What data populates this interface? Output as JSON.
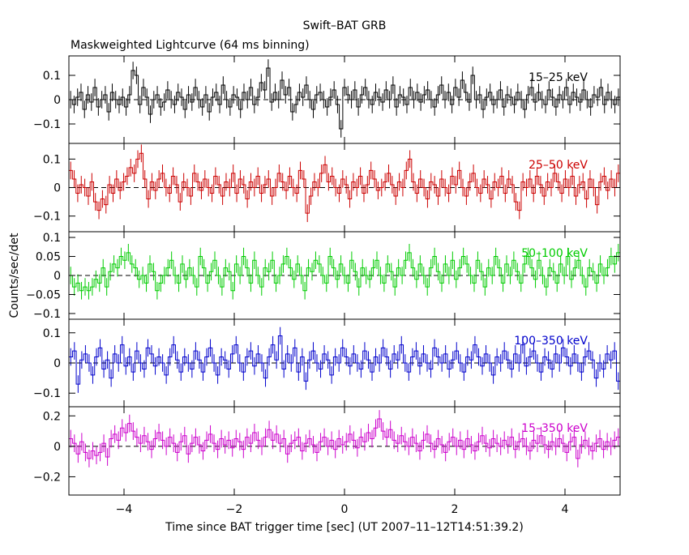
{
  "chart_data": {
    "type": "line",
    "title": "Swift–BAT GRB",
    "subtitle": "Maskweighted Lightcurve (64 ms binning)",
    "ylabel": "Counts/sec/det",
    "xlabel": "Time since BAT trigger time [sec] (UT 2007–11–12T14:51:39.2)",
    "xlim": [
      -5.0,
      5.0
    ],
    "x_ticks": [
      -4,
      -2,
      0,
      2,
      4
    ],
    "x_tick_labels": [
      "−4",
      "−2",
      "0",
      "2",
      "4"
    ],
    "bin_width_sec": 0.064,
    "panels": [
      {
        "name": "15–25 keV",
        "color": "#000000",
        "ylim": [
          -0.18,
          0.18
        ],
        "y_ticks": [
          -0.1,
          0,
          0.1
        ],
        "y_tick_labels": [
          "−0.1",
          "0",
          "0.1"
        ],
        "values": [
          0.0,
          -0.02,
          0.01,
          0.03,
          -0.04,
          0.02,
          -0.01,
          0.05,
          -0.03,
          0.0,
          0.02,
          -0.05,
          0.03,
          0.0,
          -0.02,
          0.01,
          -0.03,
          0.02,
          0.12,
          0.1,
          -0.02,
          0.05,
          0.01,
          -0.06,
          0.0,
          0.02,
          -0.03,
          -0.01,
          0.04,
          0.0,
          -0.02,
          0.03,
          0.01,
          -0.04,
          0.02,
          -0.01,
          0.05,
          0.0,
          -0.03,
          0.02,
          -0.05,
          0.01,
          0.03,
          -0.02,
          0.06,
          0.0,
          -0.03,
          0.02,
          0.01,
          -0.04,
          0.03,
          0.0,
          0.05,
          -0.02,
          0.01,
          0.07,
          0.04,
          0.13,
          -0.01,
          0.03,
          0.0,
          0.08,
          0.02,
          0.05,
          -0.05,
          -0.02,
          0.03,
          0.01,
          0.06,
          0.0,
          -0.04,
          0.02,
          0.03,
          0.0,
          -0.03,
          0.01,
          0.04,
          -0.02,
          -0.12,
          0.05,
          0.02,
          0.0,
          0.04,
          -0.03,
          0.02,
          0.05,
          0.0,
          -0.02,
          0.03,
          0.01,
          -0.01,
          0.04,
          0.0,
          0.06,
          -0.03,
          0.02,
          0.01,
          -0.02,
          0.05,
          0.0,
          0.03,
          -0.01,
          0.02,
          0.04,
          0.0,
          -0.03,
          0.02,
          0.06,
          0.0,
          0.03,
          -0.02,
          0.05,
          0.01,
          0.08,
          0.03,
          -0.01,
          0.1,
          0.0,
          0.02,
          -0.04,
          0.01,
          0.03,
          -0.02,
          0.0,
          0.04,
          -0.03,
          0.02,
          0.01,
          -0.02,
          0.03,
          0.0,
          -0.04,
          0.02,
          0.05,
          -0.01,
          0.03,
          0.0,
          -0.02,
          0.04,
          0.01,
          -0.03,
          0.02,
          0.0,
          0.05,
          -0.02,
          0.03,
          0.01,
          -0.01,
          0.04,
          0.0,
          -0.03,
          0.02,
          0.01,
          0.05,
          -0.02,
          0.03,
          0.0,
          -0.02,
          0.01
        ]
      },
      {
        "name": "25–50 keV",
        "color": "#cc0000",
        "ylim": [
          -0.155,
          0.155
        ],
        "y_ticks": [
          -0.1,
          0,
          0.1
        ],
        "y_tick_labels": [
          "−0.1",
          "0",
          "0.1"
        ],
        "values": [
          0.06,
          0.03,
          -0.02,
          0.01,
          0.0,
          -0.03,
          0.02,
          -0.05,
          -0.08,
          -0.04,
          -0.06,
          0.01,
          -0.02,
          0.03,
          -0.01,
          0.02,
          0.04,
          0.07,
          0.05,
          0.1,
          0.12,
          0.03,
          -0.04,
          0.02,
          -0.01,
          0.03,
          0.05,
          0.0,
          -0.02,
          0.04,
          0.01,
          -0.05,
          0.02,
          0.0,
          -0.03,
          0.05,
          0.02,
          -0.01,
          0.03,
          0.0,
          -0.02,
          0.04,
          0.01,
          -0.03,
          0.02,
          0.0,
          0.05,
          -0.02,
          0.03,
          0.01,
          -0.04,
          0.02,
          0.0,
          0.04,
          -0.02,
          0.01,
          0.03,
          -0.03,
          0.0,
          0.05,
          0.02,
          -0.01,
          0.04,
          0.0,
          -0.02,
          0.06,
          0.03,
          -0.09,
          -0.03,
          0.02,
          0.0,
          0.05,
          0.08,
          0.02,
          0.04,
          0.0,
          -0.02,
          0.03,
          0.01,
          -0.04,
          0.02,
          0.0,
          0.04,
          -0.02,
          0.01,
          0.06,
          0.03,
          -0.01,
          0.0,
          0.02,
          0.05,
          0.01,
          -0.03,
          0.02,
          0.0,
          0.06,
          0.1,
          0.02,
          -0.02,
          0.03,
          0.0,
          -0.04,
          0.02,
          0.01,
          -0.03,
          0.03,
          0.0,
          -0.02,
          0.04,
          0.01,
          0.06,
          0.0,
          -0.03,
          0.02,
          0.05,
          0.0,
          -0.02,
          0.03,
          0.01,
          -0.04,
          0.02,
          0.0,
          0.04,
          -0.02,
          0.03,
          0.01,
          -0.05,
          -0.08,
          0.02,
          0.0,
          0.03,
          -0.02,
          0.04,
          0.01,
          -0.03,
          0.02,
          0.0,
          0.05,
          0.02,
          -0.02,
          0.03,
          0.0,
          0.04,
          -0.03,
          0.01,
          0.02,
          -0.04,
          0.03,
          0.0,
          -0.06,
          0.02,
          0.04,
          -0.01,
          0.03,
          0.0,
          0.05
        ]
      },
      {
        "name": "50–100 keV",
        "color": "#00cc00",
        "ylim": [
          -0.115,
          0.115
        ],
        "y_ticks": [
          -0.1,
          -0.05,
          0,
          0.05,
          0.1
        ],
        "y_tick_labels": [
          "−0.1",
          "−0.05",
          "0",
          "0.05",
          "0.1"
        ],
        "values": [
          0.0,
          -0.03,
          -0.02,
          -0.04,
          -0.03,
          -0.04,
          -0.03,
          -0.01,
          -0.02,
          0.02,
          -0.03,
          0.01,
          0.03,
          0.02,
          0.05,
          0.04,
          0.06,
          0.03,
          0.02,
          -0.01,
          0.0,
          -0.02,
          0.03,
          0.01,
          -0.04,
          -0.02,
          0.0,
          0.02,
          0.04,
          0.0,
          -0.02,
          0.03,
          -0.01,
          0.02,
          0.0,
          -0.03,
          0.05,
          0.02,
          -0.02,
          0.01,
          0.04,
          0.0,
          -0.03,
          0.02,
          0.01,
          -0.04,
          0.03,
          0.0,
          0.05,
          0.02,
          -0.02,
          0.04,
          0.0,
          -0.03,
          0.02,
          0.01,
          0.04,
          -0.02,
          0.0,
          0.03,
          0.05,
          0.02,
          -0.01,
          0.03,
          0.0,
          -0.04,
          0.02,
          0.01,
          0.04,
          0.03,
          0.0,
          -0.02,
          0.05,
          0.02,
          -0.01,
          0.03,
          0.0,
          -0.02,
          0.04,
          0.01,
          -0.03,
          0.02,
          0.0,
          -0.01,
          0.02,
          0.04,
          0.0,
          -0.02,
          0.03,
          0.01,
          -0.03,
          0.02,
          0.0,
          0.04,
          0.06,
          0.02,
          -0.01,
          0.03,
          0.0,
          -0.03,
          0.02,
          0.05,
          0.01,
          -0.02,
          0.03,
          0.0,
          0.04,
          -0.01,
          0.02,
          0.05,
          0.03,
          0.0,
          -0.02,
          0.04,
          0.01,
          -0.03,
          0.02,
          0.0,
          0.05,
          0.02,
          -0.02,
          0.03,
          0.0,
          0.04,
          0.01,
          -0.02,
          0.03,
          0.05,
          0.02,
          -0.01,
          0.04,
          0.0,
          -0.03,
          0.02,
          0.01,
          -0.02,
          0.03,
          0.0,
          0.05,
          -0.01,
          0.02,
          0.04,
          0.0,
          -0.03,
          0.02,
          0.01,
          -0.02,
          0.03,
          0.0,
          0.02,
          0.05,
          0.03,
          0.06
        ]
      },
      {
        "name": "100–350 keV",
        "color": "#0000cc",
        "ylim": [
          -0.145,
          0.145
        ],
        "y_ticks": [
          -0.1,
          0,
          0.1
        ],
        "y_tick_labels": [
          "−0.1",
          "0",
          "0.1"
        ],
        "values": [
          0.02,
          0.04,
          -0.07,
          0.01,
          0.03,
          0.0,
          -0.04,
          0.02,
          0.05,
          -0.02,
          0.01,
          -0.05,
          0.03,
          0.0,
          0.06,
          -0.01,
          0.02,
          -0.03,
          0.04,
          0.0,
          -0.02,
          0.05,
          0.03,
          -0.01,
          0.02,
          0.0,
          -0.04,
          0.02,
          0.06,
          0.01,
          -0.03,
          0.02,
          0.0,
          -0.02,
          0.04,
          0.01,
          -0.03,
          0.02,
          0.05,
          0.0,
          -0.04,
          0.02,
          0.01,
          -0.02,
          0.03,
          0.06,
          0.0,
          -0.03,
          0.02,
          0.04,
          -0.01,
          0.03,
          0.0,
          -0.05,
          0.02,
          0.06,
          0.01,
          0.09,
          -0.02,
          0.03,
          0.0,
          0.05,
          -0.03,
          0.02,
          -0.06,
          0.01,
          0.04,
          0.0,
          -0.02,
          0.03,
          0.01,
          -0.04,
          0.02,
          0.0,
          0.05,
          0.02,
          -0.01,
          0.03,
          0.0,
          -0.02,
          0.04,
          0.01,
          -0.03,
          0.02,
          0.0,
          0.05,
          0.02,
          -0.02,
          0.03,
          0.01,
          0.06,
          0.0,
          -0.03,
          0.02,
          0.04,
          -0.01,
          0.03,
          0.0,
          -0.02,
          0.05,
          0.02,
          0.0,
          0.03,
          -0.02,
          0.01,
          0.04,
          0.0,
          -0.03,
          0.02,
          0.01,
          0.06,
          0.02,
          -0.01,
          0.03,
          0.0,
          -0.04,
          0.02,
          0.0,
          0.04,
          0.01,
          -0.02,
          0.03,
          0.0,
          0.06,
          -0.01,
          0.02,
          0.04,
          0.0,
          -0.03,
          0.02,
          0.01,
          -0.02,
          0.03,
          0.0,
          0.05,
          0.02,
          -0.01,
          0.03,
          0.0,
          -0.03,
          0.02,
          0.04,
          0.01,
          -0.05,
          0.0,
          -0.02,
          0.03,
          0.01,
          0.04,
          -0.06
        ]
      },
      {
        "name": "15–350 keV",
        "color": "#cc00cc",
        "ylim": [
          -0.32,
          0.26
        ],
        "y_ticks": [
          -0.2,
          0,
          0.2
        ],
        "y_tick_labels": [
          "−0.2",
          "0",
          "0.2"
        ],
        "values": [
          0.05,
          0.02,
          -0.05,
          0.03,
          -0.04,
          -0.08,
          -0.03,
          -0.06,
          -0.04,
          0.02,
          -0.07,
          0.05,
          0.08,
          0.04,
          0.12,
          0.09,
          0.15,
          0.1,
          0.06,
          0.02,
          0.07,
          0.03,
          -0.02,
          0.05,
          0.09,
          0.04,
          0.0,
          0.06,
          0.02,
          -0.04,
          0.03,
          0.07,
          -0.05,
          0.02,
          0.06,
          0.01,
          -0.03,
          0.04,
          0.08,
          0.02,
          -0.02,
          0.05,
          0.01,
          0.04,
          -0.01,
          0.05,
          0.03,
          -0.02,
          0.06,
          0.02,
          0.09,
          0.04,
          0.0,
          0.06,
          0.11,
          0.04,
          0.08,
          0.02,
          0.05,
          -0.05,
          0.02,
          0.04,
          0.06,
          -0.03,
          0.02,
          0.05,
          0.01,
          -0.04,
          0.03,
          0.06,
          0.0,
          0.04,
          -0.02,
          0.05,
          0.01,
          0.03,
          0.08,
          0.04,
          -0.01,
          0.06,
          0.03,
          0.09,
          0.05,
          0.12,
          0.18,
          0.1,
          0.06,
          0.11,
          0.04,
          0.02,
          0.07,
          0.03,
          0.0,
          0.06,
          0.02,
          -0.03,
          0.04,
          0.08,
          0.02,
          -0.02,
          0.05,
          0.01,
          -0.04,
          0.03,
          0.06,
          0.0,
          0.04,
          -0.02,
          0.05,
          0.01,
          -0.03,
          0.03,
          0.07,
          0.02,
          -0.01,
          0.05,
          0.02,
          0.0,
          0.04,
          0.01,
          0.06,
          -0.02,
          0.03,
          0.05,
          0.0,
          -0.03,
          0.04,
          0.02,
          0.07,
          0.01,
          -0.02,
          0.03,
          0.0,
          0.05,
          0.02,
          -0.04,
          0.03,
          0.06,
          -0.08,
          0.01,
          0.04,
          0.0,
          -0.03,
          0.02,
          0.05,
          -0.02,
          0.03,
          0.0,
          0.04,
          0.06
        ]
      }
    ]
  }
}
